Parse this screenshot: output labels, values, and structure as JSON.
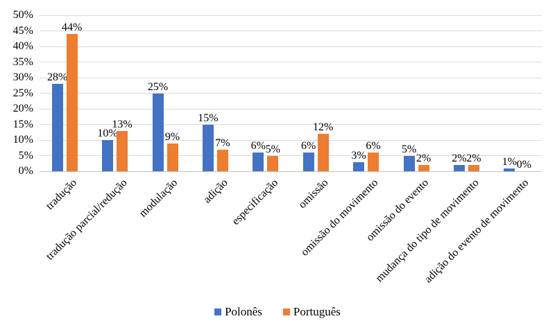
{
  "chart_data": {
    "type": "bar",
    "categories": [
      "tradução",
      "tradução parcial/redução",
      "modulação",
      "adição",
      "especificação",
      "omissão",
      "omissão do movimento",
      "omissão do evento",
      "mudança do tipo de movimento",
      "adição do evento de movimento"
    ],
    "series": [
      {
        "name": "Polonês",
        "color": "#4472C4",
        "values": [
          28,
          10,
          25,
          15,
          6,
          6,
          3,
          5,
          2,
          1
        ]
      },
      {
        "name": "Português",
        "color": "#ED7D31",
        "values": [
          44,
          13,
          9,
          7,
          5,
          12,
          6,
          2,
          2,
          0
        ]
      }
    ],
    "title": "",
    "xlabel": "",
    "ylabel": "",
    "ylim": [
      0,
      50
    ],
    "ytick_step": 5,
    "value_suffix": "%",
    "grid": true,
    "data_labels": true,
    "legend_position": "bottom"
  },
  "colors": {
    "gridline": "#d9d9d9",
    "axis_line": "#bfbfbf",
    "text": "#000000",
    "background": "#ffffff"
  }
}
